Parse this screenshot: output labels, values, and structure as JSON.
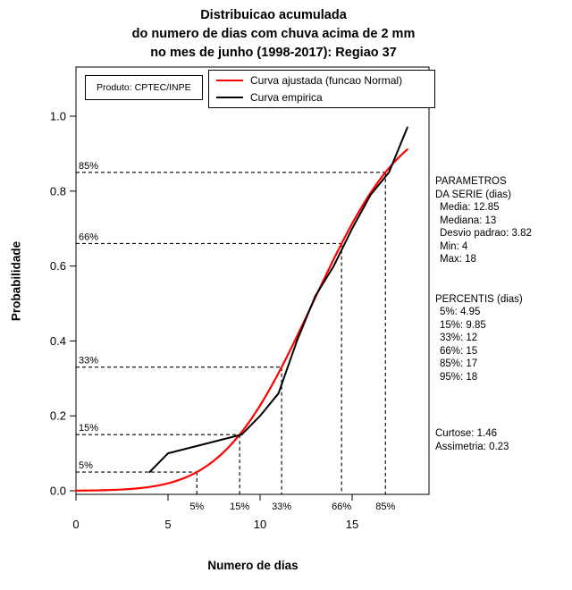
{
  "title": {
    "lines": [
      "Distribuicao acumulada",
      "do numero de dias com chuva acima de 2 mm",
      "no mes de junho (1998-2017): Regiao 37"
    ]
  },
  "product_label": "Produto: CPTEC/INPE",
  "legend": {
    "items": [
      {
        "label": "Curva ajustada (funcao Normal)",
        "color": "#ff0000"
      },
      {
        "label": "Curva empirica",
        "color": "#000000"
      }
    ]
  },
  "axes": {
    "x_label": "Numero de dias",
    "y_label": "Probabilidade",
    "x_tick_labels": [
      "0",
      "5",
      "10",
      "15"
    ],
    "x_tick_values": [
      0,
      5,
      10,
      15
    ],
    "y_tick_labels": [
      "0.0",
      "0.2",
      "0.4",
      "0.6",
      "0.8",
      "1.0"
    ],
    "y_tick_values": [
      0,
      0.2,
      0.4,
      0.6,
      0.8,
      1.0
    ]
  },
  "chart_data": {
    "type": "line",
    "title": "Distribuicao acumulada do numero de dias com chuva acima de 2 mm no mes de junho (1998-2017): Regiao 37",
    "xlabel": "Numero de dias",
    "ylabel": "Probabilidade",
    "xlim": [
      0,
      18.6
    ],
    "ylim": [
      0,
      1.04
    ],
    "grid": false,
    "legend_position": "top-inside",
    "series": [
      {
        "name": "Curva ajustada (funcao Normal)",
        "kind": "normal_cdf",
        "color": "#ff0000",
        "mean": 12.85,
        "sd": 3.82
      },
      {
        "name": "Curva empirica",
        "kind": "polyline",
        "color": "#000000",
        "points": [
          [
            4,
            0.05
          ],
          [
            5,
            0.1
          ],
          [
            9,
            0.15
          ],
          [
            10,
            0.2
          ],
          [
            11,
            0.26
          ],
          [
            12,
            0.4
          ],
          [
            13,
            0.52
          ],
          [
            14,
            0.6
          ],
          [
            15,
            0.7
          ],
          [
            16,
            0.79
          ],
          [
            17,
            0.85
          ],
          [
            18,
            0.97
          ]
        ]
      }
    ],
    "percentile_guides": {
      "levels": [
        0.05,
        0.15,
        0.33,
        0.66,
        0.85
      ],
      "labels": [
        "5%",
        "15%",
        "33%",
        "66%",
        "85%"
      ],
      "line_style": "dashed"
    },
    "stats": {
      "media": 12.85,
      "mediana": 13,
      "desvio_padrao": 3.82,
      "min": 4,
      "max": 18,
      "percentis": {
        "5%": 4.95,
        "15%": 9.85,
        "33%": 12,
        "66%": 15,
        "85%": 17,
        "95%": 18
      },
      "curtose": 1.46,
      "assimetria": 0.23
    }
  },
  "side_panel": {
    "parametros_title_line1": "PARAMETROS",
    "parametros_title_line2": "DA SERIE (dias)",
    "media": "Media: 12.85",
    "mediana": "Mediana: 13",
    "desvio": "Desvio padrao: 3.82",
    "min": "Min: 4",
    "max": "Max: 18",
    "percentis_title": "PERCENTIS (dias)",
    "p5": "5%: 4.95",
    "p15": "15%: 9.85",
    "p33": "33%: 12",
    "p66": "66%: 15",
    "p85": "85%: 17",
    "p95": "95%: 18",
    "curtose": "Curtose: 1.46",
    "assimetria": "Assimetria: 0.23"
  }
}
